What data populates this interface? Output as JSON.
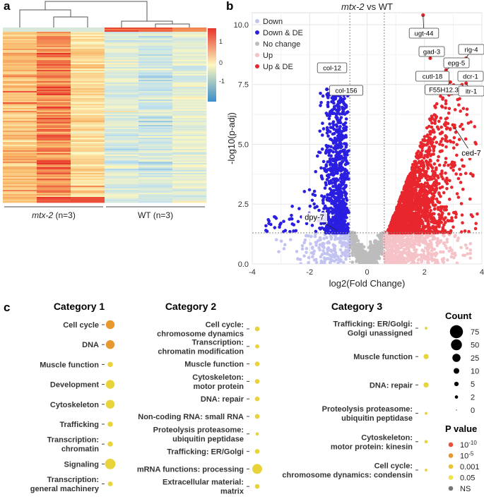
{
  "chart_data": [
    {
      "panel": "a",
      "type": "heatmap",
      "title": "",
      "groups": [
        {
          "label_italic": "mtx-2",
          "label_rest": " (n=3)"
        },
        {
          "label_italic": "",
          "label_rest": "WT (n=3)"
        }
      ],
      "colorbar": {
        "ticks": [
          "1",
          "0",
          "-1"
        ],
        "colors": [
          "#e8352b",
          "#fdf7bf",
          "#3a8ec9"
        ]
      }
    },
    {
      "panel": "b",
      "type": "scatter",
      "title_italic": "mtx-2",
      "title_rest": " vs WT",
      "xlabel": "log2(Fold Change)",
      "ylabel": "-log10(p-adj)",
      "xlim": [
        -4,
        4
      ],
      "ylim": [
        0,
        10.5
      ],
      "xticks": [
        "-4",
        "-2",
        "0",
        "2",
        "4"
      ],
      "yticks": [
        "0.0",
        "2.5",
        "5.0",
        "7.5",
        "10.0"
      ],
      "fc_threshold": 0.6,
      "padj_threshold": 1.3,
      "legend": [
        {
          "name": "Down",
          "color": "#c3c3f2"
        },
        {
          "name": "Down & DE",
          "color": "#2a1ee0"
        },
        {
          "name": "No change",
          "color": "#bcbcbc"
        },
        {
          "name": "Up",
          "color": "#f5c2c8"
        },
        {
          "name": "Up & DE",
          "color": "#e8262d"
        }
      ],
      "labeled_genes": [
        {
          "name": "ugt-44",
          "x": 1.95,
          "y": 10.4
        },
        {
          "name": "gad-3",
          "x": 2.2,
          "y": 8.6
        },
        {
          "name": "rig-4",
          "x": 3.45,
          "y": 8.6
        },
        {
          "name": "epg-5",
          "x": 2.75,
          "y": 8.1
        },
        {
          "name": "cutl-18",
          "x": 2.4,
          "y": 7.8
        },
        {
          "name": "dcr-1",
          "x": 3.3,
          "y": 7.9
        },
        {
          "name": "F55H12.3",
          "x": 2.9,
          "y": 7.6
        },
        {
          "name": "itr-1",
          "x": 3.45,
          "y": 7.55
        },
        {
          "name": "col-12",
          "x": -1.35,
          "y": 8.3
        },
        {
          "name": "col-156",
          "x": -1.4,
          "y": 7.3
        },
        {
          "name": "ced-7",
          "x": 3.05,
          "y": 5.7
        },
        {
          "name": "dpy-7",
          "x": -1.05,
          "y": 1.4
        }
      ]
    },
    {
      "panel": "c",
      "type": "bubble",
      "categories": [
        {
          "title": "Category 1",
          "terms": [
            {
              "label": [
                "Cell cycle"
              ],
              "count": 30,
              "color": "#e8982e"
            },
            {
              "label": [
                "DNA"
              ],
              "count": 30,
              "color": "#e8982e"
            },
            {
              "label": [
                "Muscle function"
              ],
              "count": 8,
              "color": "#e9d33a"
            },
            {
              "label": [
                "Development"
              ],
              "count": 30,
              "color": "#e9d33a"
            },
            {
              "label": [
                "Cytoskeleton"
              ],
              "count": 30,
              "color": "#e9d33a"
            },
            {
              "label": [
                "Trafficking"
              ],
              "count": 8,
              "color": "#e9d33a"
            },
            {
              "label": [
                "Transcription:",
                "chromatin"
              ],
              "count": 8,
              "color": "#e9d33a"
            },
            {
              "label": [
                "Signaling"
              ],
              "count": 45,
              "color": "#e9d33a"
            },
            {
              "label": [
                "Transcription:",
                "general machinery"
              ],
              "count": 6,
              "color": "#e9d33a"
            }
          ]
        },
        {
          "title": "Category 2",
          "terms": [
            {
              "label": [
                "Cell cycle:",
                "chromosome dynamics"
              ],
              "count": 6,
              "color": "#e9d33a"
            },
            {
              "label": [
                "Transcription:",
                "chromatin modification"
              ],
              "count": 4,
              "color": "#e9d33a"
            },
            {
              "label": [
                "Muscle function"
              ],
              "count": 6,
              "color": "#e9d33a"
            },
            {
              "label": [
                "Cytoskeleton:",
                "motor protein"
              ],
              "count": 6,
              "color": "#e9d33a"
            },
            {
              "label": [
                "DNA: repair"
              ],
              "count": 6,
              "color": "#e9d33a"
            },
            {
              "label": [
                "Non-coding RNA: small RNA"
              ],
              "count": 6,
              "color": "#e9d33a"
            },
            {
              "label": [
                "Proteolysis proteasome:",
                "ubiquitin peptidase"
              ],
              "count": 2,
              "color": "#e9d33a"
            },
            {
              "label": [
                "Trafficking: ER/Golgi"
              ],
              "count": 6,
              "color": "#e9d33a"
            },
            {
              "label": [
                "mRNA functions: processing"
              ],
              "count": 40,
              "color": "#e9d33a"
            },
            {
              "label": [
                "Extracellular material:",
                "matrix"
              ],
              "count": 6,
              "color": "#e9d33a"
            }
          ]
        },
        {
          "title": "Category 3",
          "terms": [
            {
              "label": [
                "Trafficking: ER/Golgi:",
                "Golgi unassigned"
              ],
              "count": 1,
              "color": "#e9d33a"
            },
            {
              "label": [
                "Muscle function"
              ],
              "count": 8,
              "color": "#e9d33a"
            },
            {
              "label": [
                "DNA: repair"
              ],
              "count": 8,
              "color": "#e9d33a"
            },
            {
              "label": [
                "Proteolysis proteasome:",
                "ubiquitin peptidase"
              ],
              "count": 1,
              "color": "#e9d33a"
            },
            {
              "label": [
                "Cytoskeleton:",
                "motor protein: kinesin"
              ],
              "count": 2,
              "color": "#e9d33a"
            },
            {
              "label": [
                "Cell cycle:",
                "chromosome dynamics: condensin"
              ],
              "count": 1,
              "color": "#e9d33a"
            }
          ]
        }
      ],
      "count_legend": {
        "title": "Count",
        "values": [
          "75",
          "50",
          "25",
          "10",
          "5",
          "2",
          "0"
        ],
        "counts": [
          75,
          50,
          25,
          10,
          5,
          2,
          0
        ]
      },
      "pvalue_legend": {
        "title": "P value",
        "items": [
          {
            "label": "10",
            "sup": "-10",
            "color": "#e8533a"
          },
          {
            "label": "10",
            "sup": "-5",
            "color": "#e8982e"
          },
          {
            "label": "0.001",
            "sup": "",
            "color": "#e9c43a"
          },
          {
            "label": "0.05",
            "sup": "",
            "color": "#ede34a"
          },
          {
            "label": "NS",
            "sup": "",
            "color": "#777777"
          }
        ]
      }
    }
  ]
}
